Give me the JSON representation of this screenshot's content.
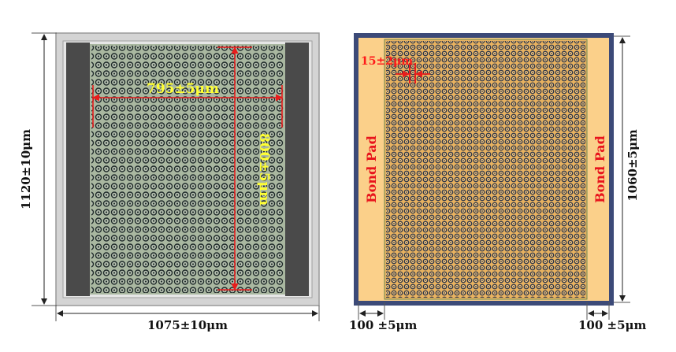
{
  "left_panel": {
    "width_label": "1075±10μm",
    "height_label": "1120±10μm",
    "array_width_label": "795±5μm",
    "array_height_label": "800±5μm",
    "colors": {
      "frame": "#bdbdbd",
      "dark_side": "#4a4a4a",
      "array_bg": "#a9b7a0",
      "cell": "#1f2a2a",
      "dimension_line": "#e81c1c"
    }
  },
  "right_panel": {
    "height_label": "1060±5μm",
    "pitch_label": "15±2μm",
    "left_pad_label": "Bond Pad",
    "right_pad_label": "Bond Pad",
    "left_pad_width_label": "100 ±5μm",
    "right_pad_width_label": "100 ±5μm",
    "colors": {
      "border": "#3c4a78",
      "pad": "#fbd08a",
      "array_bg": "#e8b260",
      "cell": "#2c3548"
    }
  }
}
